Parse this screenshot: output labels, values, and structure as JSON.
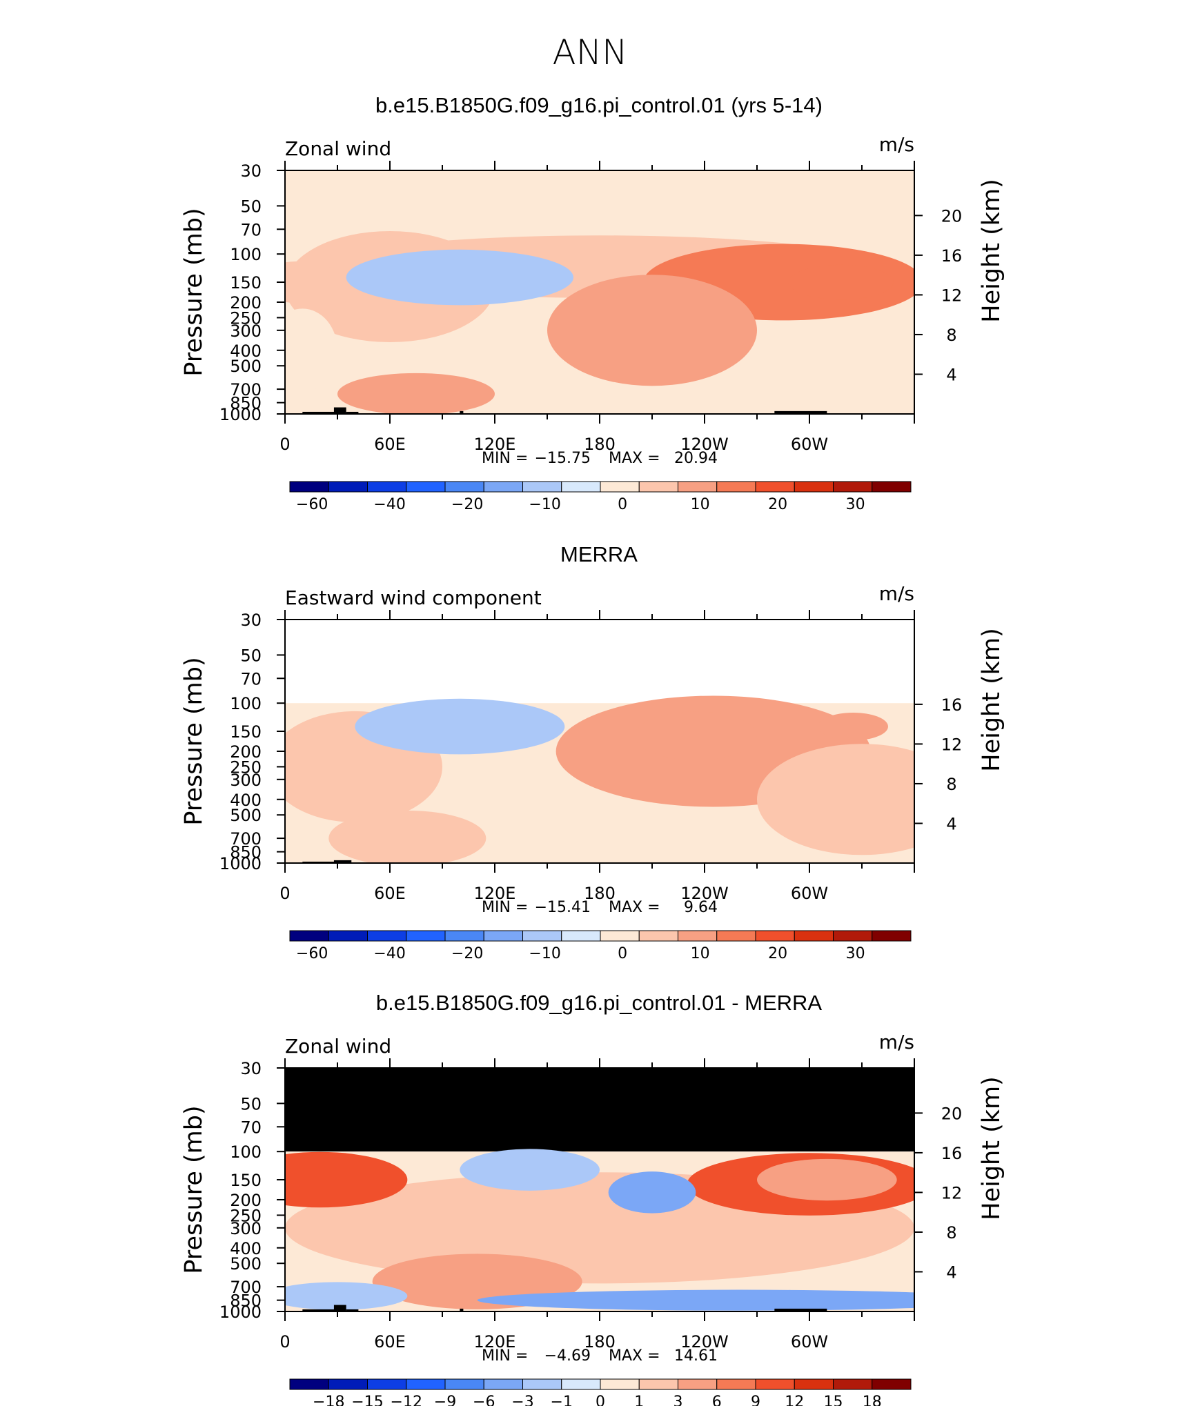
{
  "figure": {
    "title": "ANN"
  },
  "chart_data": [
    {
      "type": "heatmap",
      "title": "b.e15.B1850G.f09_g16.pi_control.01 (yrs 5-14)",
      "variable_label": "Zonal wind",
      "units": "m/s",
      "ylabel": "Pressure (mb)",
      "ylabel_right": "Height (km)",
      "x_ticks": [
        "0",
        "60E",
        "120E",
        "180",
        "120W",
        "60W"
      ],
      "y_ticks": [
        "30",
        "50",
        "70",
        "100",
        "150",
        "200",
        "250",
        "300",
        "400",
        "500",
        "700",
        "850",
        "1000"
      ],
      "y_right_ticks": [
        "20",
        "16",
        "12",
        "8",
        "4"
      ],
      "min_label": "MIN =",
      "min_value": "−15.75",
      "max_label": "MAX =",
      "max_value": "20.94",
      "colorbar_labels": [
        "−60",
        "−40",
        "−20",
        "−10",
        "0",
        "10",
        "20",
        "30"
      ],
      "xlim": [
        0,
        360
      ],
      "ylim": [
        1000,
        30
      ],
      "data_top_mb": 30,
      "masked_top": false,
      "blobs": [
        {
          "lon": 0,
          "p": 500,
          "rx": 360,
          "rp": 1.2,
          "value": -2
        },
        {
          "lon": 180,
          "p": 120,
          "rx": 160,
          "rp": 0.45,
          "value": 4
        },
        {
          "lon": 285,
          "p": 150,
          "rx": 80,
          "rp": 0.55,
          "value": 14
        },
        {
          "lon": 318,
          "p": 150,
          "rx": 30,
          "rp": 0.25,
          "value": 10
        },
        {
          "lon": 60,
          "p": 160,
          "rx": 60,
          "rp": 0.8,
          "value": 4
        },
        {
          "lon": 8,
          "p": 150,
          "rx": 25,
          "rp": 0.3,
          "value": 4
        },
        {
          "lon": 100,
          "p": 140,
          "rx": 65,
          "rp": 0.4,
          "value": -12
        },
        {
          "lon": 75,
          "p": 750,
          "rx": 45,
          "rp": 0.3,
          "value": 6
        },
        {
          "lon": 10,
          "p": 400,
          "rx": 20,
          "rp": 0.6,
          "value": -5
        },
        {
          "lon": 210,
          "p": 300,
          "rx": 60,
          "rp": 0.8,
          "value": 5
        }
      ],
      "topography": [
        [
          10,
          30,
          970
        ],
        [
          28,
          35,
          910
        ],
        [
          35,
          42,
          970
        ],
        [
          100,
          102,
          960
        ],
        [
          280,
          310,
          960
        ]
      ]
    },
    {
      "type": "heatmap",
      "title": "MERRA",
      "variable_label": "Eastward wind component",
      "units": "m/s",
      "ylabel": "Pressure (mb)",
      "ylabel_right": "Height (km)",
      "x_ticks": [
        "0",
        "60E",
        "120E",
        "180",
        "120W",
        "60W"
      ],
      "y_ticks": [
        "30",
        "50",
        "70",
        "100",
        "150",
        "200",
        "250",
        "300",
        "400",
        "500",
        "700",
        "850",
        "1000"
      ],
      "y_right_ticks": [
        "16",
        "12",
        "8",
        "4"
      ],
      "min_label": "MIN =",
      "min_value": "−15.41",
      "max_label": "MAX =",
      "max_value": "9.64",
      "colorbar_labels": [
        "−60",
        "−40",
        "−20",
        "−10",
        "0",
        "10",
        "20",
        "30"
      ],
      "xlim": [
        0,
        360
      ],
      "ylim": [
        1000,
        30
      ],
      "data_top_mb": 100,
      "masked_top": false,
      "blobs": [
        {
          "lon": 0,
          "p": 500,
          "rx": 360,
          "rp": 1.2,
          "value": -2
        },
        {
          "lon": 245,
          "p": 200,
          "rx": 90,
          "rp": 0.8,
          "value": 5
        },
        {
          "lon": 235,
          "p": 160,
          "rx": 35,
          "rp": 0.35,
          "value": 6
        },
        {
          "lon": 325,
          "p": 140,
          "rx": 20,
          "rp": 0.2,
          "value": 5
        },
        {
          "lon": 40,
          "p": 250,
          "rx": 50,
          "rp": 0.8,
          "value": 2
        },
        {
          "lon": 100,
          "p": 140,
          "rx": 60,
          "rp": 0.4,
          "value": -12
        },
        {
          "lon": 70,
          "p": 700,
          "rx": 45,
          "rp": 0.4,
          "value": 4
        },
        {
          "lon": 330,
          "p": 400,
          "rx": 60,
          "rp": 0.8,
          "value": 3
        }
      ],
      "topography": [
        [
          10,
          30,
          980
        ],
        [
          28,
          38,
          960
        ]
      ]
    },
    {
      "type": "heatmap",
      "title": "b.e15.B1850G.f09_g16.pi_control.01 - MERRA",
      "variable_label": "Zonal wind",
      "units": "m/s",
      "ylabel": "Pressure (mb)",
      "ylabel_right": "Height (km)",
      "x_ticks": [
        "0",
        "60E",
        "120E",
        "180",
        "120W",
        "60W"
      ],
      "y_ticks": [
        "30",
        "50",
        "70",
        "100",
        "150",
        "200",
        "250",
        "300",
        "400",
        "500",
        "700",
        "850",
        "1000"
      ],
      "y_right_ticks": [
        "20",
        "16",
        "12",
        "8",
        "4"
      ],
      "min_label": "MIN =",
      "min_value": "−4.69",
      "max_label": "MAX =",
      "max_value": "14.61",
      "colorbar_labels": [
        "−18",
        "−15",
        "−12",
        "−9",
        "−6",
        "−3",
        "−1",
        "0",
        "1",
        "3",
        "6",
        "9",
        "12",
        "15",
        "18"
      ],
      "xlim": [
        0,
        360
      ],
      "ylim": [
        1000,
        30
      ],
      "data_top_mb": 100,
      "masked_top": true,
      "blobs": [
        {
          "lon": 180,
          "p": 300,
          "rx": 180,
          "rp": 0.8,
          "value": 2
        },
        {
          "lon": 20,
          "p": 150,
          "rx": 50,
          "rp": 0.4,
          "value": 9
        },
        {
          "lon": 300,
          "p": 160,
          "rx": 70,
          "rp": 0.45,
          "value": 10
        },
        {
          "lon": 310,
          "p": 150,
          "rx": 40,
          "rp": 0.3,
          "value": 4
        },
        {
          "lon": 140,
          "p": 130,
          "rx": 40,
          "rp": 0.3,
          "value": -3
        },
        {
          "lon": 210,
          "p": 180,
          "rx": 25,
          "rp": 0.3,
          "value": -4
        },
        {
          "lon": 110,
          "p": 650,
          "rx": 60,
          "rp": 0.4,
          "value": 3
        },
        {
          "lon": 260,
          "p": 850,
          "rx": 150,
          "rp": 0.15,
          "value": -4
        },
        {
          "lon": 30,
          "p": 800,
          "rx": 40,
          "rp": 0.2,
          "value": -3
        }
      ],
      "topography": [
        [
          10,
          30,
          970
        ],
        [
          28,
          35,
          910
        ],
        [
          35,
          42,
          970
        ],
        [
          100,
          102,
          960
        ],
        [
          280,
          310,
          960
        ]
      ]
    }
  ],
  "colors": {
    "palette": [
      "#00007f",
      "#001cb8",
      "#0d3ee5",
      "#2163ff",
      "#4a87f5",
      "#7ba7f6",
      "#abc8f8",
      "#d8e9fc",
      "#fde9d6",
      "#fcc6ad",
      "#f7a083",
      "#f57a55",
      "#f0502c",
      "#d9310f",
      "#b11a0a",
      "#800000"
    ],
    "mask": "#000000",
    "axis": "#000000"
  }
}
